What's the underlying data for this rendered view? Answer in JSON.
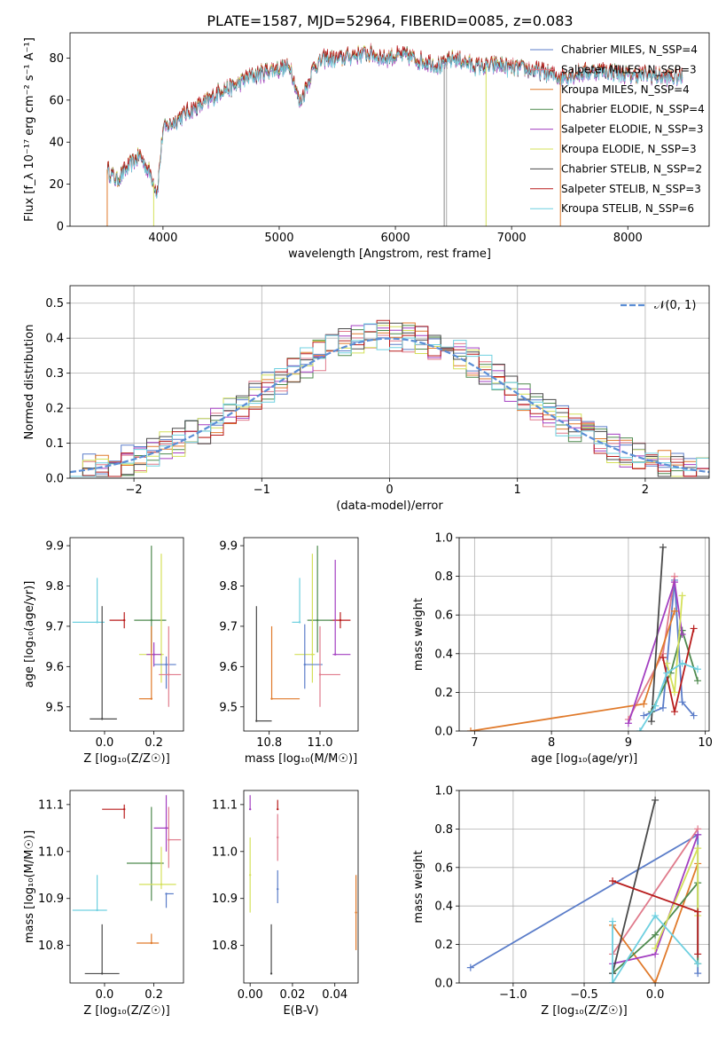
{
  "figure": {
    "title": "PLATE=1587, MJD=52964, FIBERID=0085, z=0.083"
  },
  "chart_data": [
    {
      "id": "spectrum",
      "type": "line",
      "xlabel": "wavelength [Angstrom, rest frame]",
      "ylabel": "Flux [f_λ 10⁻¹⁷ erg cm⁻² s⁻¹ A⁻¹]",
      "xlim": [
        3200,
        8700
      ],
      "ylim": [
        0,
        92
      ],
      "xticks": [
        4000,
        5000,
        6000,
        7000,
        8000
      ],
      "yticks": [
        0,
        20,
        40,
        60,
        80
      ],
      "grid": false,
      "legend_position": "right",
      "x": [
        3520,
        3600,
        3700,
        3800,
        3900,
        3950,
        4000,
        4100,
        4200,
        4300,
        4400,
        4500,
        4600,
        4700,
        4800,
        4900,
        5000,
        5100,
        5175,
        5300,
        5400,
        5500,
        5600,
        5700,
        5800,
        5900,
        6000,
        6100,
        6200,
        6300,
        6400,
        6500,
        6600,
        6700,
        6800,
        6900,
        7000,
        7100,
        7200,
        7300,
        7400,
        7500,
        7600,
        7700,
        7800,
        7900,
        8000,
        8100,
        8200,
        8300,
        8400,
        8470
      ],
      "base_flux": [
        27,
        22,
        28,
        34,
        24,
        16,
        46,
        50,
        54,
        57,
        60,
        65,
        66,
        70,
        72,
        74,
        75,
        76,
        58,
        76,
        80,
        79,
        81,
        82,
        82,
        80,
        81,
        81,
        79,
        78,
        76,
        80,
        78,
        76,
        76,
        77,
        75,
        75,
        74,
        73,
        71,
        72,
        73,
        74,
        74,
        73,
        72,
        72,
        72,
        71,
        71,
        71
      ],
      "series": [
        {
          "name": "Chabrier MILES, N_SSP=4",
          "color": "#5b7dc9",
          "offset": 0.0
        },
        {
          "name": "Salpeter MILES, N_SSP=3",
          "color": "#e07b8c",
          "offset": 1.0
        },
        {
          "name": "Kroupa MILES, N_SSP=4",
          "color": "#e07a2b",
          "offset": -0.5
        },
        {
          "name": "Chabrier ELODIE, N_SSP=4",
          "color": "#4e8a4e",
          "offset": 0.6
        },
        {
          "name": "Salpeter ELODIE, N_SSP=3",
          "color": "#a33fc1",
          "offset": -1.0
        },
        {
          "name": "Kroupa ELODIE, N_SSP=3",
          "color": "#d4e05a",
          "offset": 0.3
        },
        {
          "name": "Chabrier STELIB, N_SSP=2",
          "color": "#4a4a4a",
          "offset": -0.3
        },
        {
          "name": "Salpeter STELIB, N_SSP=3",
          "color": "#b81c1c",
          "offset": 0.8
        },
        {
          "name": "Kroupa STELIB, N_SSP=6",
          "color": "#6fd0e0",
          "offset": -0.7
        }
      ],
      "dropouts": [
        {
          "x": 3520,
          "color": "#e07a2b"
        },
        {
          "x": 3920,
          "color": "#d4e05a"
        },
        {
          "x": 6420,
          "color": "#888888"
        },
        {
          "x": 6440,
          "color": "#aaaaaa"
        },
        {
          "x": 6780,
          "color": "#d4e05a"
        },
        {
          "x": 7420,
          "color": "#e07a2b"
        }
      ]
    },
    {
      "id": "residual-hist",
      "type": "line",
      "xlabel": "(data-model)/error",
      "ylabel": "Normed distribution",
      "xlim": [
        -2.5,
        2.5
      ],
      "ylim": [
        0,
        0.55
      ],
      "xticks": [
        -2,
        -1,
        0,
        1,
        2
      ],
      "yticks": [
        0.0,
        0.1,
        0.2,
        0.3,
        0.4,
        0.5
      ],
      "grid": true,
      "legend_position": "top-right",
      "reference_curve": {
        "name": "𝒩(0, 1)",
        "color": "#5b8ed6"
      },
      "bin_width": 0.1,
      "series_colors": [
        "#5b7dc9",
        "#e07b8c",
        "#e07a2b",
        "#4e8a4e",
        "#a33fc1",
        "#d4e05a",
        "#4a4a4a",
        "#b81c1c",
        "#6fd0e0"
      ]
    },
    {
      "id": "age-vs-Z",
      "type": "scatter",
      "xlabel": "Z [log₁₀(Z/Z☉)]",
      "ylabel": "age  [log₁₀(age/yr)]",
      "xlim": [
        -0.14,
        0.32
      ],
      "ylim": [
        9.44,
        9.92
      ],
      "xticks": [
        0.0,
        0.2
      ],
      "yticks": [
        9.5,
        9.6,
        9.7,
        9.8,
        9.9
      ],
      "grid": false,
      "points": [
        {
          "x": -0.03,
          "y": 9.71,
          "xerr": [
            0.1,
            0.03
          ],
          "yerr": [
            0.0,
            0.11
          ],
          "color": "#6fd0e0"
        },
        {
          "x": 0.08,
          "y": 9.715,
          "xerr": [
            0.06,
            0.0
          ],
          "yerr": [
            0.02,
            0.02
          ],
          "color": "#b81c1c"
        },
        {
          "x": 0.19,
          "y": 9.715,
          "xerr": [
            0.07,
            0.06
          ],
          "yerr": [
            0.08,
            0.185
          ],
          "color": "#4e8a4e"
        },
        {
          "x": 0.23,
          "y": 9.63,
          "xerr": [
            0.09,
            0.01
          ],
          "yerr": [
            0.07,
            0.25
          ],
          "color": "#d4e05a"
        },
        {
          "x": 0.2,
          "y": 9.63,
          "xerr": [
            0.03,
            0.03
          ],
          "yerr": [
            0.03,
            0.03
          ],
          "color": "#a33fc1"
        },
        {
          "x": 0.25,
          "y": 9.605,
          "xerr": [
            0.05,
            0.04
          ],
          "yerr": [
            0.06,
            0.02
          ],
          "color": "#5b7dc9"
        },
        {
          "x": 0.26,
          "y": 9.58,
          "xerr": [
            0.04,
            0.05
          ],
          "yerr": [
            0.08,
            0.12
          ],
          "color": "#e07b8c"
        },
        {
          "x": 0.19,
          "y": 9.52,
          "xerr": [
            0.05,
            0.0
          ],
          "yerr": [
            0.0,
            0.18
          ],
          "color": "#e07a2b"
        },
        {
          "x": -0.01,
          "y": 9.47,
          "xerr": [
            0.05,
            0.06
          ],
          "yerr": [
            0.0,
            0.28
          ],
          "color": "#4a4a4a"
        }
      ]
    },
    {
      "id": "age-vs-mass",
      "type": "scatter",
      "xlabel": "mass [log₁₀(M/M☉)]",
      "ylabel": "",
      "xlim": [
        10.7,
        11.15
      ],
      "ylim": [
        9.44,
        9.92
      ],
      "xticks": [
        10.8,
        11.0
      ],
      "yticks": [
        9.5,
        9.6,
        9.7,
        9.8,
        9.9
      ],
      "grid": false,
      "points": [
        {
          "x": 10.92,
          "y": 9.71,
          "xerr": [
            0.03,
            0.0
          ],
          "yerr": [
            0.0,
            0.11
          ],
          "color": "#6fd0e0"
        },
        {
          "x": 11.08,
          "y": 9.715,
          "xerr": [
            0.04,
            0.04
          ],
          "yerr": [
            0.02,
            0.02
          ],
          "color": "#b81c1c"
        },
        {
          "x": 10.99,
          "y": 9.715,
          "xerr": [
            0.04,
            0.06
          ],
          "yerr": [
            0.08,
            0.185
          ],
          "color": "#4e8a4e"
        },
        {
          "x": 10.97,
          "y": 9.63,
          "xerr": [
            0.07,
            0.01
          ],
          "yerr": [
            0.07,
            0.25
          ],
          "color": "#d4e05a"
        },
        {
          "x": 11.06,
          "y": 9.63,
          "xerr": [
            0.01,
            0.06
          ],
          "yerr": [
            0.0,
            0.235
          ],
          "color": "#a33fc1"
        },
        {
          "x": 10.94,
          "y": 9.605,
          "xerr": [
            0.0,
            0.07
          ],
          "yerr": [
            0.06,
            0.1
          ],
          "color": "#5b7dc9"
        },
        {
          "x": 11.0,
          "y": 9.58,
          "xerr": [
            0.0,
            0.08
          ],
          "yerr": [
            0.08,
            0.12
          ],
          "color": "#e07b8c"
        },
        {
          "x": 10.81,
          "y": 9.52,
          "xerr": [
            0.0,
            0.11
          ],
          "yerr": [
            0.0,
            0.18
          ],
          "color": "#e07a2b"
        },
        {
          "x": 10.75,
          "y": 9.465,
          "xerr": [
            0.0,
            0.06
          ],
          "yerr": [
            0.0,
            0.285
          ],
          "color": "#4a4a4a"
        }
      ]
    },
    {
      "id": "weight-vs-age",
      "type": "line",
      "xlabel": "age  [log₁₀(age/yr)]",
      "ylabel": "mass weight",
      "xlim": [
        6.8,
        10.05
      ],
      "ylim": [
        0,
        1.0
      ],
      "xticks": [
        7,
        8,
        9,
        10
      ],
      "yticks": [
        0.0,
        0.2,
        0.4,
        0.6,
        0.8,
        1.0
      ],
      "grid": true,
      "series": [
        {
          "color": "#5b7dc9",
          "x": [
            9.2,
            9.45,
            9.6,
            9.7,
            9.85
          ],
          "y": [
            0.08,
            0.12,
            0.78,
            0.15,
            0.08
          ]
        },
        {
          "color": "#e07b8c",
          "x": [
            9.0,
            9.45,
            9.6
          ],
          "y": [
            0.06,
            0.4,
            0.8
          ]
        },
        {
          "color": "#e07a2b",
          "x": [
            6.95,
            9.2,
            9.6
          ],
          "y": [
            0.0,
            0.14,
            0.62
          ]
        },
        {
          "color": "#4e8a4e",
          "x": [
            9.3,
            9.55,
            9.7,
            9.9
          ],
          "y": [
            0.1,
            0.3,
            0.52,
            0.26
          ]
        },
        {
          "color": "#a33fc1",
          "x": [
            9.0,
            9.6,
            9.7
          ],
          "y": [
            0.04,
            0.77,
            0.5
          ]
        },
        {
          "color": "#d4e05a",
          "x": [
            9.5,
            9.6,
            9.7
          ],
          "y": [
            0.35,
            0.2,
            0.7
          ]
        },
        {
          "color": "#4a4a4a",
          "x": [
            9.3,
            9.45
          ],
          "y": [
            0.05,
            0.95
          ]
        },
        {
          "color": "#b81c1c",
          "x": [
            9.45,
            9.6,
            9.85
          ],
          "y": [
            0.38,
            0.1,
            0.53
          ]
        },
        {
          "color": "#6fd0e0",
          "x": [
            9.15,
            9.35,
            9.5,
            9.7,
            9.9
          ],
          "y": [
            0.0,
            0.13,
            0.3,
            0.35,
            0.32
          ]
        }
      ]
    },
    {
      "id": "mass-vs-Z",
      "type": "scatter",
      "xlabel": "Z [log₁₀(Z/Z☉)]",
      "ylabel": "mass [log₁₀(M/M☉)]",
      "xlim": [
        -0.14,
        0.32
      ],
      "ylim": [
        10.72,
        11.13
      ],
      "xticks": [
        0.0,
        0.2
      ],
      "yticks": [
        10.8,
        10.9,
        11.0,
        11.1
      ],
      "grid": false,
      "points": [
        {
          "x": -0.03,
          "y": 10.875,
          "xerr": [
            0.1,
            0.04
          ],
          "yerr": [
            0.0,
            0.075
          ],
          "color": "#6fd0e0"
        },
        {
          "x": 0.08,
          "y": 11.09,
          "xerr": [
            0.09,
            0.0
          ],
          "yerr": [
            0.02,
            0.01
          ],
          "color": "#b81c1c"
        },
        {
          "x": 0.19,
          "y": 10.975,
          "xerr": [
            0.1,
            0.05
          ],
          "yerr": [
            0.08,
            0.12
          ],
          "color": "#4e8a4e"
        },
        {
          "x": 0.23,
          "y": 10.93,
          "xerr": [
            0.09,
            0.06
          ],
          "yerr": [
            0.01,
            0.08
          ],
          "color": "#d4e05a"
        },
        {
          "x": 0.25,
          "y": 11.05,
          "xerr": [
            0.05,
            0.01
          ],
          "yerr": [
            0.05,
            0.07
          ],
          "color": "#a33fc1"
        },
        {
          "x": 0.25,
          "y": 10.91,
          "xerr": [
            0.0,
            0.03
          ],
          "yerr": [
            0.03,
            0.0
          ],
          "color": "#5b7dc9"
        },
        {
          "x": 0.26,
          "y": 11.025,
          "xerr": [
            0.0,
            0.05
          ],
          "yerr": [
            0.06,
            0.07
          ],
          "color": "#e07b8c"
        },
        {
          "x": 0.19,
          "y": 10.805,
          "xerr": [
            0.06,
            0.03
          ],
          "yerr": [
            0.0,
            0.02
          ],
          "color": "#e07a2b"
        },
        {
          "x": -0.01,
          "y": 10.74,
          "xerr": [
            0.07,
            0.07
          ],
          "yerr": [
            0.0,
            0.105
          ],
          "color": "#4a4a4a"
        }
      ]
    },
    {
      "id": "mass-vs-ebv",
      "type": "scatter",
      "xlabel": "E(B-V)",
      "ylabel": "",
      "xlim": [
        -0.003,
        0.051
      ],
      "ylim": [
        10.72,
        11.13
      ],
      "xticks": [
        0.0,
        0.02,
        0.04
      ],
      "yticks": [
        10.8,
        10.9,
        11.0,
        11.1
      ],
      "grid": false,
      "points": [
        {
          "x": 0.0,
          "y": 11.09,
          "xerr": [
            0,
            0
          ],
          "yerr": [
            0.0,
            0.03
          ],
          "color": "#a33fc1"
        },
        {
          "x": 0.0,
          "y": 10.95,
          "xerr": [
            0,
            0
          ],
          "yerr": [
            0.08,
            0.08
          ],
          "color": "#d4e05a"
        },
        {
          "x": 0.01,
          "y": 10.74,
          "xerr": [
            0,
            0
          ],
          "yerr": [
            0.0,
            0.105
          ],
          "color": "#4a4a4a"
        },
        {
          "x": 0.013,
          "y": 11.09,
          "xerr": [
            0,
            0
          ],
          "yerr": [
            0.0,
            0.02
          ],
          "color": "#b81c1c"
        },
        {
          "x": 0.013,
          "y": 11.03,
          "xerr": [
            0,
            0
          ],
          "yerr": [
            0.05,
            0.05
          ],
          "color": "#e07b8c"
        },
        {
          "x": 0.013,
          "y": 10.92,
          "xerr": [
            0,
            0
          ],
          "yerr": [
            0.03,
            0.04
          ],
          "color": "#5b7dc9"
        },
        {
          "x": 0.05,
          "y": 10.87,
          "xerr": [
            0,
            0
          ],
          "yerr": [
            0.08,
            0.08
          ],
          "color": "#e07a2b"
        }
      ]
    },
    {
      "id": "weight-vs-Z",
      "type": "line",
      "xlabel": "Z [log₁₀(Z/Z☉)]",
      "ylabel": "mass weight",
      "xlim": [
        -1.38,
        0.38
      ],
      "ylim": [
        0,
        1.0
      ],
      "xticks": [
        -1.0,
        -0.5,
        0.0
      ],
      "yticks": [
        0.0,
        0.2,
        0.4,
        0.6,
        0.8,
        1.0
      ],
      "grid": true,
      "series": [
        {
          "color": "#5b7dc9",
          "x": [
            -1.3,
            0.3,
            0.3
          ],
          "y": [
            0.08,
            0.77,
            0.05
          ]
        },
        {
          "color": "#e07b8c",
          "x": [
            -0.3,
            0.3
          ],
          "y": [
            0.15,
            0.8
          ]
        },
        {
          "color": "#e07a2b",
          "x": [
            -0.3,
            0.0,
            0.3
          ],
          "y": [
            0.3,
            0.0,
            0.62
          ]
        },
        {
          "color": "#4e8a4e",
          "x": [
            -0.3,
            0.0,
            0.3,
            0.3
          ],
          "y": [
            0.05,
            0.25,
            0.52,
            0.1
          ]
        },
        {
          "color": "#a33fc1",
          "x": [
            -0.3,
            0.0,
            0.3
          ],
          "y": [
            0.1,
            0.15,
            0.77
          ]
        },
        {
          "color": "#d4e05a",
          "x": [
            0.0,
            0.3,
            0.3
          ],
          "y": [
            0.18,
            0.7,
            0.35
          ]
        },
        {
          "color": "#4a4a4a",
          "x": [
            -0.3,
            0.0
          ],
          "y": [
            0.05,
            0.95
          ]
        },
        {
          "color": "#b81c1c",
          "x": [
            -0.3,
            0.3,
            0.3
          ],
          "y": [
            0.53,
            0.37,
            0.15
          ]
        },
        {
          "color": "#6fd0e0",
          "x": [
            -0.3,
            -0.3,
            0.0,
            0.3
          ],
          "y": [
            0.32,
            0.0,
            0.35,
            0.1
          ]
        }
      ]
    }
  ]
}
